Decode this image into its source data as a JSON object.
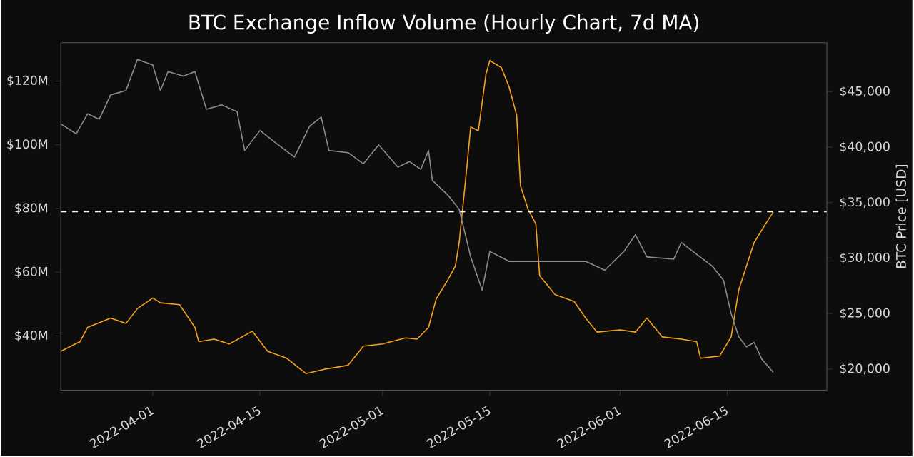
{
  "chart_data": {
    "type": "line",
    "title": "BTC Exchange Inflow Volume (Hourly Chart, 7d MA)",
    "y2label": "BTC Price [USD]",
    "xlim": [
      "2022-03-20",
      "2022-06-28"
    ],
    "xticks": [
      "2022-04-01",
      "2022-04-15",
      "2022-05-01",
      "2022-05-15",
      "2022-06-01",
      "2022-06-15"
    ],
    "ylim": [
      23,
      132
    ],
    "yticks": [
      {
        "value": 40,
        "label": "$40M"
      },
      {
        "value": 60,
        "label": "$60M"
      },
      {
        "value": 80,
        "label": "$80M"
      },
      {
        "value": 100,
        "label": "$100M"
      },
      {
        "value": 120,
        "label": "$120M"
      }
    ],
    "y2lim": [
      18100,
      49400
    ],
    "y2ticks": [
      {
        "value": 20000,
        "label": "$20,000"
      },
      {
        "value": 25000,
        "label": "$25,000"
      },
      {
        "value": 30000,
        "label": "$30,000"
      },
      {
        "value": 35000,
        "label": "$35,000"
      },
      {
        "value": 40000,
        "label": "$40,000"
      },
      {
        "value": 45000,
        "label": "$45,000"
      }
    ],
    "grid": false,
    "ref_lines": [
      {
        "axis": "y",
        "value": 79,
        "color": "#ffffff",
        "line_style": "dashed"
      }
    ],
    "series": [
      {
        "color": "#8c8c8c",
        "axis": "y2",
        "x": [
          "2022-03-20",
          "2022-03-22",
          "2022-03-23T12:00",
          "2022-03-25",
          "2022-03-26T12:00",
          "2022-03-28T12:00",
          "2022-03-30",
          "2022-04-01",
          "2022-04-02",
          "2022-04-03",
          "2022-04-05",
          "2022-04-06T12:00",
          "2022-04-08",
          "2022-04-10",
          "2022-04-12",
          "2022-04-13",
          "2022-04-15",
          "2022-04-17",
          "2022-04-19T12:00",
          "2022-04-21T12:00",
          "2022-04-23",
          "2022-04-24",
          "2022-04-26T12:00",
          "2022-04-28T12:00",
          "2022-04-30T12:00",
          "2022-05-03",
          "2022-05-04T12:00",
          "2022-05-06",
          "2022-05-07",
          "2022-05-07T12:00",
          "2022-05-09T12:00",
          "2022-05-11",
          "2022-05-12T12:00",
          "2022-05-14",
          "2022-05-15",
          "2022-05-17T12:00",
          "2022-05-21T12:00",
          "2022-05-24T12:00",
          "2022-05-27T12:00",
          "2022-05-30",
          "2022-06-01T12:00",
          "2022-06-03",
          "2022-06-04T12:00",
          "2022-06-08",
          "2022-06-09",
          "2022-06-10T12:00",
          "2022-06-13",
          "2022-06-14T12:00",
          "2022-06-15T12:00",
          "2022-06-16T12:00",
          "2022-06-17T12:00",
          "2022-06-18T12:00",
          "2022-06-19T12:00",
          "2022-06-21"
        ],
        "values": [
          42100,
          41200,
          43000,
          42500,
          44700,
          45100,
          47900,
          47400,
          45100,
          46800,
          46400,
          46800,
          43400,
          43800,
          43200,
          39700,
          41500,
          40400,
          39100,
          41900,
          42700,
          39700,
          39500,
          38500,
          40200,
          38200,
          38700,
          38000,
          39700,
          37000,
          35700,
          34400,
          30100,
          27100,
          30600,
          29700,
          29700,
          29700,
          29700,
          28900,
          30600,
          32100,
          30100,
          29900,
          31400,
          30600,
          29300,
          28000,
          25000,
          22900,
          22000,
          22400,
          20900,
          19700
        ]
      },
      {
        "color": "#f7a21b",
        "x": [
          "2022-03-20",
          "2022-03-22T12:00",
          "2022-03-23T12:00",
          "2022-03-26T12:00",
          "2022-03-28T12:00",
          "2022-03-30",
          "2022-04-01",
          "2022-04-02",
          "2022-04-04T12:00",
          "2022-04-06T12:00",
          "2022-04-07",
          "2022-04-09",
          "2022-04-11",
          "2022-04-14",
          "2022-04-16",
          "2022-04-18T12:00",
          "2022-04-21",
          "2022-04-23T12:00",
          "2022-04-26T12:00",
          "2022-04-28T12:00",
          "2022-05-01",
          "2022-05-04",
          "2022-05-05T12:00",
          "2022-05-07",
          "2022-05-08",
          "2022-05-09T12:00",
          "2022-05-10T12:00",
          "2022-05-11",
          "2022-05-12",
          "2022-05-12T12:00",
          "2022-05-13T12:00",
          "2022-05-14T12:00",
          "2022-05-15",
          "2022-05-16T12:00",
          "2022-05-17T12:00",
          "2022-05-18T12:00",
          "2022-05-19",
          "2022-05-20",
          "2022-05-21",
          "2022-05-21T12:00",
          "2022-05-23T12:00",
          "2022-05-26",
          "2022-05-27T12:00",
          "2022-05-29",
          "2022-06-01",
          "2022-06-03",
          "2022-06-04T12:00",
          "2022-06-06T12:00",
          "2022-06-09",
          "2022-06-11",
          "2022-06-11T12:00",
          "2022-06-14",
          "2022-06-15T12:00",
          "2022-06-16T12:00",
          "2022-06-18T12:00",
          "2022-06-20",
          "2022-06-21"
        ],
        "values": [
          35.2,
          38.2,
          42.7,
          45.6,
          43.9,
          48.6,
          51.9,
          50.4,
          49.8,
          42.7,
          38.2,
          39.0,
          37.5,
          41.5,
          35.2,
          33.0,
          28.2,
          29.6,
          30.8,
          36.8,
          37.5,
          39.4,
          39.0,
          42.7,
          51.6,
          57.5,
          61.9,
          69.3,
          93.0,
          105.6,
          104.4,
          122.2,
          126.4,
          124.2,
          118.2,
          109.3,
          87.1,
          79.7,
          75.2,
          58.9,
          53.0,
          50.8,
          45.6,
          41.2,
          41.9,
          41.2,
          45.6,
          39.7,
          39.0,
          38.2,
          33.0,
          33.7,
          39.7,
          54.5,
          69.3,
          75.2,
          78.9
        ]
      }
    ]
  }
}
